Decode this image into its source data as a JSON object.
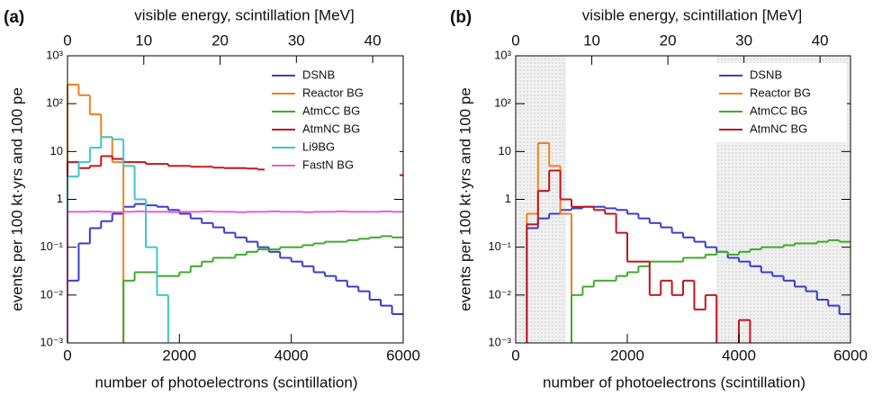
{
  "chart_data": [
    {
      "type": "histogram",
      "panel_label": "(a)",
      "x2label": "visible energy, scintillation [MeV]",
      "xlabel": "number of photoelectrons (scintillation)",
      "ylabel": "events per 100 kt·yrs and 100 pe",
      "bins": [
        0,
        200,
        400,
        600,
        800,
        1000,
        1200,
        1400,
        1600,
        1800,
        2000,
        2200,
        2400,
        2600,
        2800,
        3000,
        3200,
        3400,
        3600,
        3800,
        4000,
        4200,
        4400,
        4600,
        4800,
        5000,
        5200,
        5400,
        5600,
        5800,
        6000
      ],
      "xlim": [
        0,
        6000
      ],
      "xticks": [
        0,
        2000,
        4000,
        6000
      ],
      "x2lim": [
        0,
        44
      ],
      "x2ticks": [
        0,
        10,
        20,
        30,
        40
      ],
      "ylim": [
        0.001,
        1000
      ],
      "log_y": true,
      "yticks": [
        {
          "value": 1000,
          "label": "10³"
        },
        {
          "value": 100,
          "label": "10²"
        },
        10,
        1,
        {
          "value": 0.1,
          "label": "10⁻¹"
        },
        {
          "value": 0.01,
          "label": "10⁻²"
        },
        {
          "value": 0.001,
          "label": "10⁻³"
        }
      ],
      "legend": "upper right",
      "series": [
        {
          "name": "DSNB",
          "color": "#3b3bcc",
          "values": [
            0.02,
            0.12,
            0.25,
            0.35,
            0.5,
            0.7,
            0.8,
            0.75,
            0.7,
            0.6,
            0.5,
            0.4,
            0.32,
            0.26,
            0.2,
            0.16,
            0.13,
            0.1,
            0.08,
            0.06,
            0.05,
            0.04,
            0.03,
            0.025,
            0.02,
            0.015,
            0.012,
            0.008,
            0.006,
            0.004
          ]
        },
        {
          "name": "Reactor BG",
          "color": "#f47f20",
          "values": [
            250,
            150,
            60,
            20,
            6,
            null,
            null,
            null,
            null,
            null,
            null,
            null,
            null,
            null,
            null,
            null,
            null,
            null,
            null,
            null,
            null,
            null,
            null,
            null,
            null,
            null,
            null,
            null,
            null,
            null
          ]
        },
        {
          "name": "AtmCC BG",
          "color": "#3faa2a",
          "values": [
            null,
            null,
            null,
            null,
            null,
            0.02,
            0.03,
            0.03,
            0.025,
            0.025,
            0.03,
            0.04,
            0.05,
            0.06,
            0.06,
            0.07,
            0.08,
            0.09,
            0.09,
            0.1,
            0.1,
            0.11,
            0.12,
            0.13,
            0.13,
            0.14,
            0.15,
            0.16,
            0.17,
            0.16
          ]
        },
        {
          "name": "AtmNC BG",
          "color": "#c0161c",
          "values": [
            6,
            4.5,
            5,
            8,
            7,
            6,
            6,
            5.5,
            5.5,
            5,
            5,
            4.8,
            4.8,
            4.6,
            4.5,
            4.5,
            4.4,
            4.2,
            4.2,
            4,
            4,
            3.9,
            3.8,
            3.7,
            3.6,
            3.6,
            3.5,
            3.4,
            3.3,
            3.2
          ]
        },
        {
          "name": "Li9BG",
          "color": "#3cc8c8",
          "values": [
            3,
            6,
            12,
            20,
            18,
            5,
            1,
            0.1,
            0.01,
            null,
            null,
            null,
            null,
            null,
            null,
            null,
            null,
            null,
            null,
            null,
            null,
            null,
            null,
            null,
            null,
            null,
            null,
            null,
            null,
            null
          ]
        },
        {
          "name": "FastN BG",
          "color": "#e65ed2",
          "values": [
            0.55,
            0.55,
            0.56,
            0.55,
            0.54,
            0.55,
            0.56,
            0.55,
            0.55,
            0.54,
            0.55,
            0.55,
            0.56,
            0.55,
            0.55,
            0.54,
            0.55,
            0.55,
            0.56,
            0.55,
            0.55,
            0.54,
            0.55,
            0.55,
            0.56,
            0.55,
            0.55,
            0.55,
            0.56,
            0.55
          ]
        }
      ]
    },
    {
      "type": "histogram",
      "panel_label": "(b)",
      "x2label": "visible energy, scintillation [MeV]",
      "xlabel": "number of photoelectrons (scintillation)",
      "ylabel": "events per 100 kt·yrs and 100 pe",
      "bins": [
        0,
        200,
        400,
        600,
        800,
        1000,
        1200,
        1400,
        1600,
        1800,
        2000,
        2200,
        2400,
        2600,
        2800,
        3000,
        3200,
        3400,
        3600,
        3800,
        4000,
        4200,
        4400,
        4600,
        4800,
        5000,
        5200,
        5400,
        5600,
        5800,
        6000
      ],
      "xlim": [
        0,
        6000
      ],
      "xticks": [
        0,
        2000,
        4000,
        6000
      ],
      "x2lim": [
        0,
        44
      ],
      "x2ticks": [
        0,
        10,
        20,
        30,
        40
      ],
      "ylim": [
        0.001,
        1000
      ],
      "log_y": true,
      "yticks": [
        {
          "value": 1000,
          "label": "10³"
        },
        {
          "value": 100,
          "label": "10²"
        },
        10,
        1,
        {
          "value": 0.1,
          "label": "10⁻¹"
        },
        {
          "value": 0.01,
          "label": "10⁻²"
        },
        {
          "value": 0.001,
          "label": "10⁻³"
        }
      ],
      "legend": "upper right",
      "series": [
        {
          "name": "DSNB",
          "color": "#3b3bcc",
          "values": [
            null,
            0.25,
            0.4,
            0.5,
            0.6,
            0.65,
            0.7,
            0.7,
            0.65,
            0.6,
            0.5,
            0.4,
            0.32,
            0.26,
            0.2,
            0.16,
            0.13,
            0.1,
            0.08,
            0.06,
            0.05,
            0.04,
            0.03,
            0.025,
            0.02,
            0.015,
            0.012,
            0.008,
            0.006,
            0.004
          ]
        },
        {
          "name": "Reactor BG",
          "color": "#f47f20",
          "values": [
            null,
            0.5,
            15,
            5,
            0.5,
            null,
            null,
            null,
            null,
            null,
            null,
            null,
            null,
            null,
            null,
            null,
            null,
            null,
            null,
            null,
            null,
            null,
            null,
            null,
            null,
            null,
            null,
            null,
            null,
            null
          ]
        },
        {
          "name": "AtmCC BG",
          "color": "#3faa2a",
          "values": [
            null,
            null,
            null,
            null,
            null,
            0.01,
            0.015,
            0.02,
            0.02,
            0.025,
            0.03,
            0.04,
            0.05,
            0.05,
            0.05,
            0.06,
            0.06,
            0.07,
            0.08,
            0.07,
            0.08,
            0.09,
            0.1,
            0.1,
            0.11,
            0.12,
            0.12,
            0.13,
            0.14,
            0.13
          ]
        },
        {
          "name": "AtmNC BG",
          "color": "#c0161c",
          "values": [
            null,
            0.3,
            1.5,
            4,
            1,
            0.7,
            0.7,
            0.6,
            0.5,
            0.2,
            0.05,
            0.05,
            0.01,
            0.02,
            0.01,
            0.02,
            0.005,
            0.01,
            null,
            null,
            0.003,
            null,
            null,
            null,
            null,
            null,
            null,
            null,
            null,
            null
          ]
        }
      ]
    }
  ]
}
